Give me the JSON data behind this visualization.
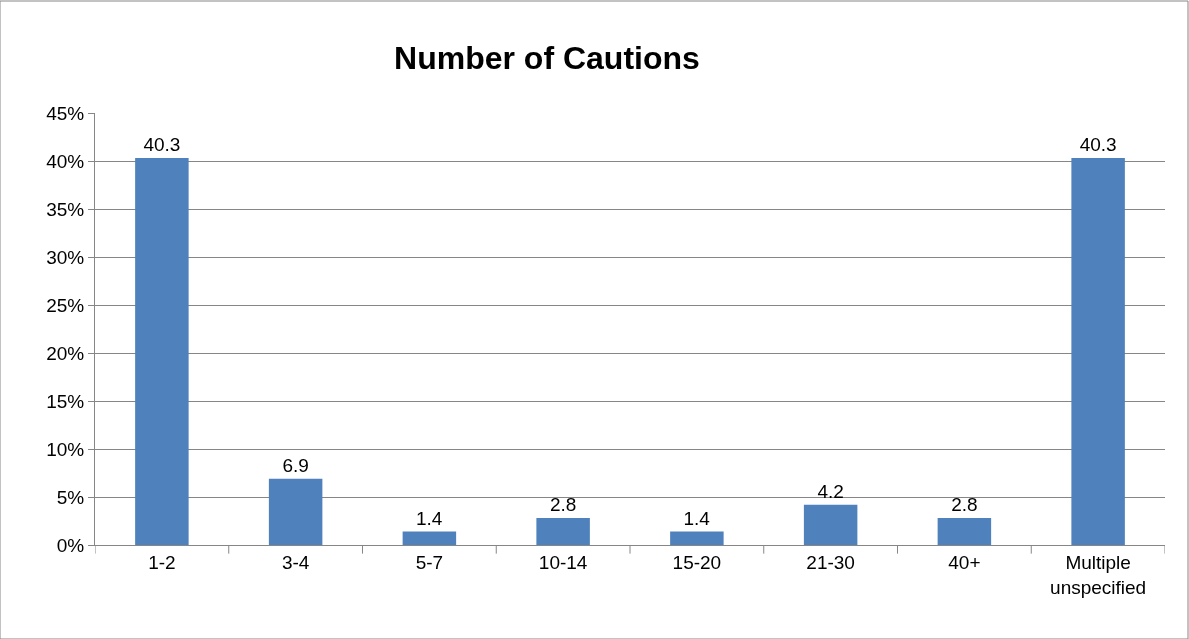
{
  "chart_data": {
    "type": "bar",
    "title": "Number of Cautions",
    "categories": [
      "1-2",
      "3-4",
      "5-7",
      "10-14",
      "15-20",
      "21-30",
      "40+",
      "Multiple unspecified"
    ],
    "values": [
      40.3,
      6.9,
      1.4,
      2.8,
      1.4,
      4.2,
      2.8,
      40.3
    ],
    "color": "#4f81bd",
    "ylim": [
      0,
      45
    ],
    "yticks": [
      {
        "value": 0,
        "label": "0%"
      },
      {
        "value": 5,
        "label": "5%"
      },
      {
        "value": 10,
        "label": "10%"
      },
      {
        "value": 15,
        "label": "15%"
      },
      {
        "value": 20,
        "label": "20%"
      },
      {
        "value": 25,
        "label": "25%"
      },
      {
        "value": 30,
        "label": "30%"
      },
      {
        "value": 35,
        "label": "35%"
      },
      {
        "value": 40,
        "label": "40%"
      },
      {
        "value": 45,
        "label": "45%"
      }
    ],
    "grid": "y",
    "data_labels": true
  }
}
